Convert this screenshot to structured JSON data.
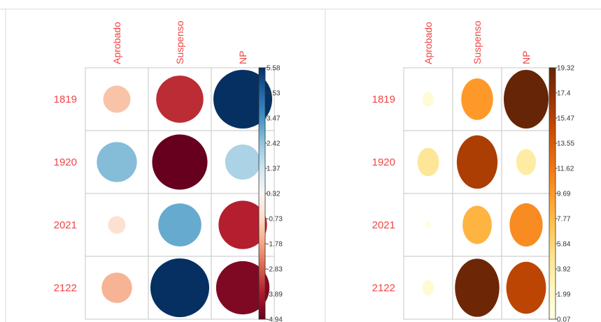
{
  "chart_data": [
    {
      "type": "corrplot",
      "rows": [
        "1819",
        "1920",
        "2021",
        "2122"
      ],
      "columns": [
        "Aprobado",
        "Suspenso",
        "NP"
      ],
      "values": [
        [
          -1.2,
          -3.6,
          5.58
        ],
        [
          2.6,
          -4.94,
          2.0
        ],
        [
          -0.5,
          3.0,
          -3.8
        ],
        [
          -1.5,
          5.58,
          -4.6
        ]
      ],
      "colorbar": {
        "range": [
          -4.94,
          5.58
        ],
        "ticks": [
          "5.58",
          "4.53",
          "3.47",
          "2.42",
          "1.37",
          "0.32",
          "-0.73",
          "-1.78",
          "-2.83",
          "-3.89",
          "-4.94"
        ]
      },
      "palette": [
        "#053061",
        "#2166ac",
        "#4393c3",
        "#92c5de",
        "#d1e5f0",
        "#f7f7f7",
        "#fddbc7",
        "#f4a582",
        "#d6604d",
        "#b2182b",
        "#67001f"
      ]
    },
    {
      "type": "corrplot",
      "rows": [
        "1819",
        "1920",
        "2021",
        "2122"
      ],
      "columns": [
        "Aprobado",
        "Suspenso",
        "NP"
      ],
      "values": [
        [
          1.2,
          9.7,
          19.32
        ],
        [
          4.5,
          16.0,
          3.8
        ],
        [
          0.3,
          8.2,
          10.5
        ],
        [
          1.3,
          19.0,
          15.2
        ]
      ],
      "colorbar": {
        "range": [
          0.07,
          19.32
        ],
        "ticks": [
          "19.32",
          "17.4",
          "15.47",
          "13.55",
          "11.62",
          "9.69",
          "7.77",
          "5.84",
          "3.92",
          "1.99",
          "0.07"
        ]
      },
      "palette": [
        "#ffffe5",
        "#fff7bc",
        "#fee391",
        "#fec44f",
        "#fe9929",
        "#ec7014",
        "#cc4c02",
        "#993404",
        "#662506"
      ]
    }
  ]
}
